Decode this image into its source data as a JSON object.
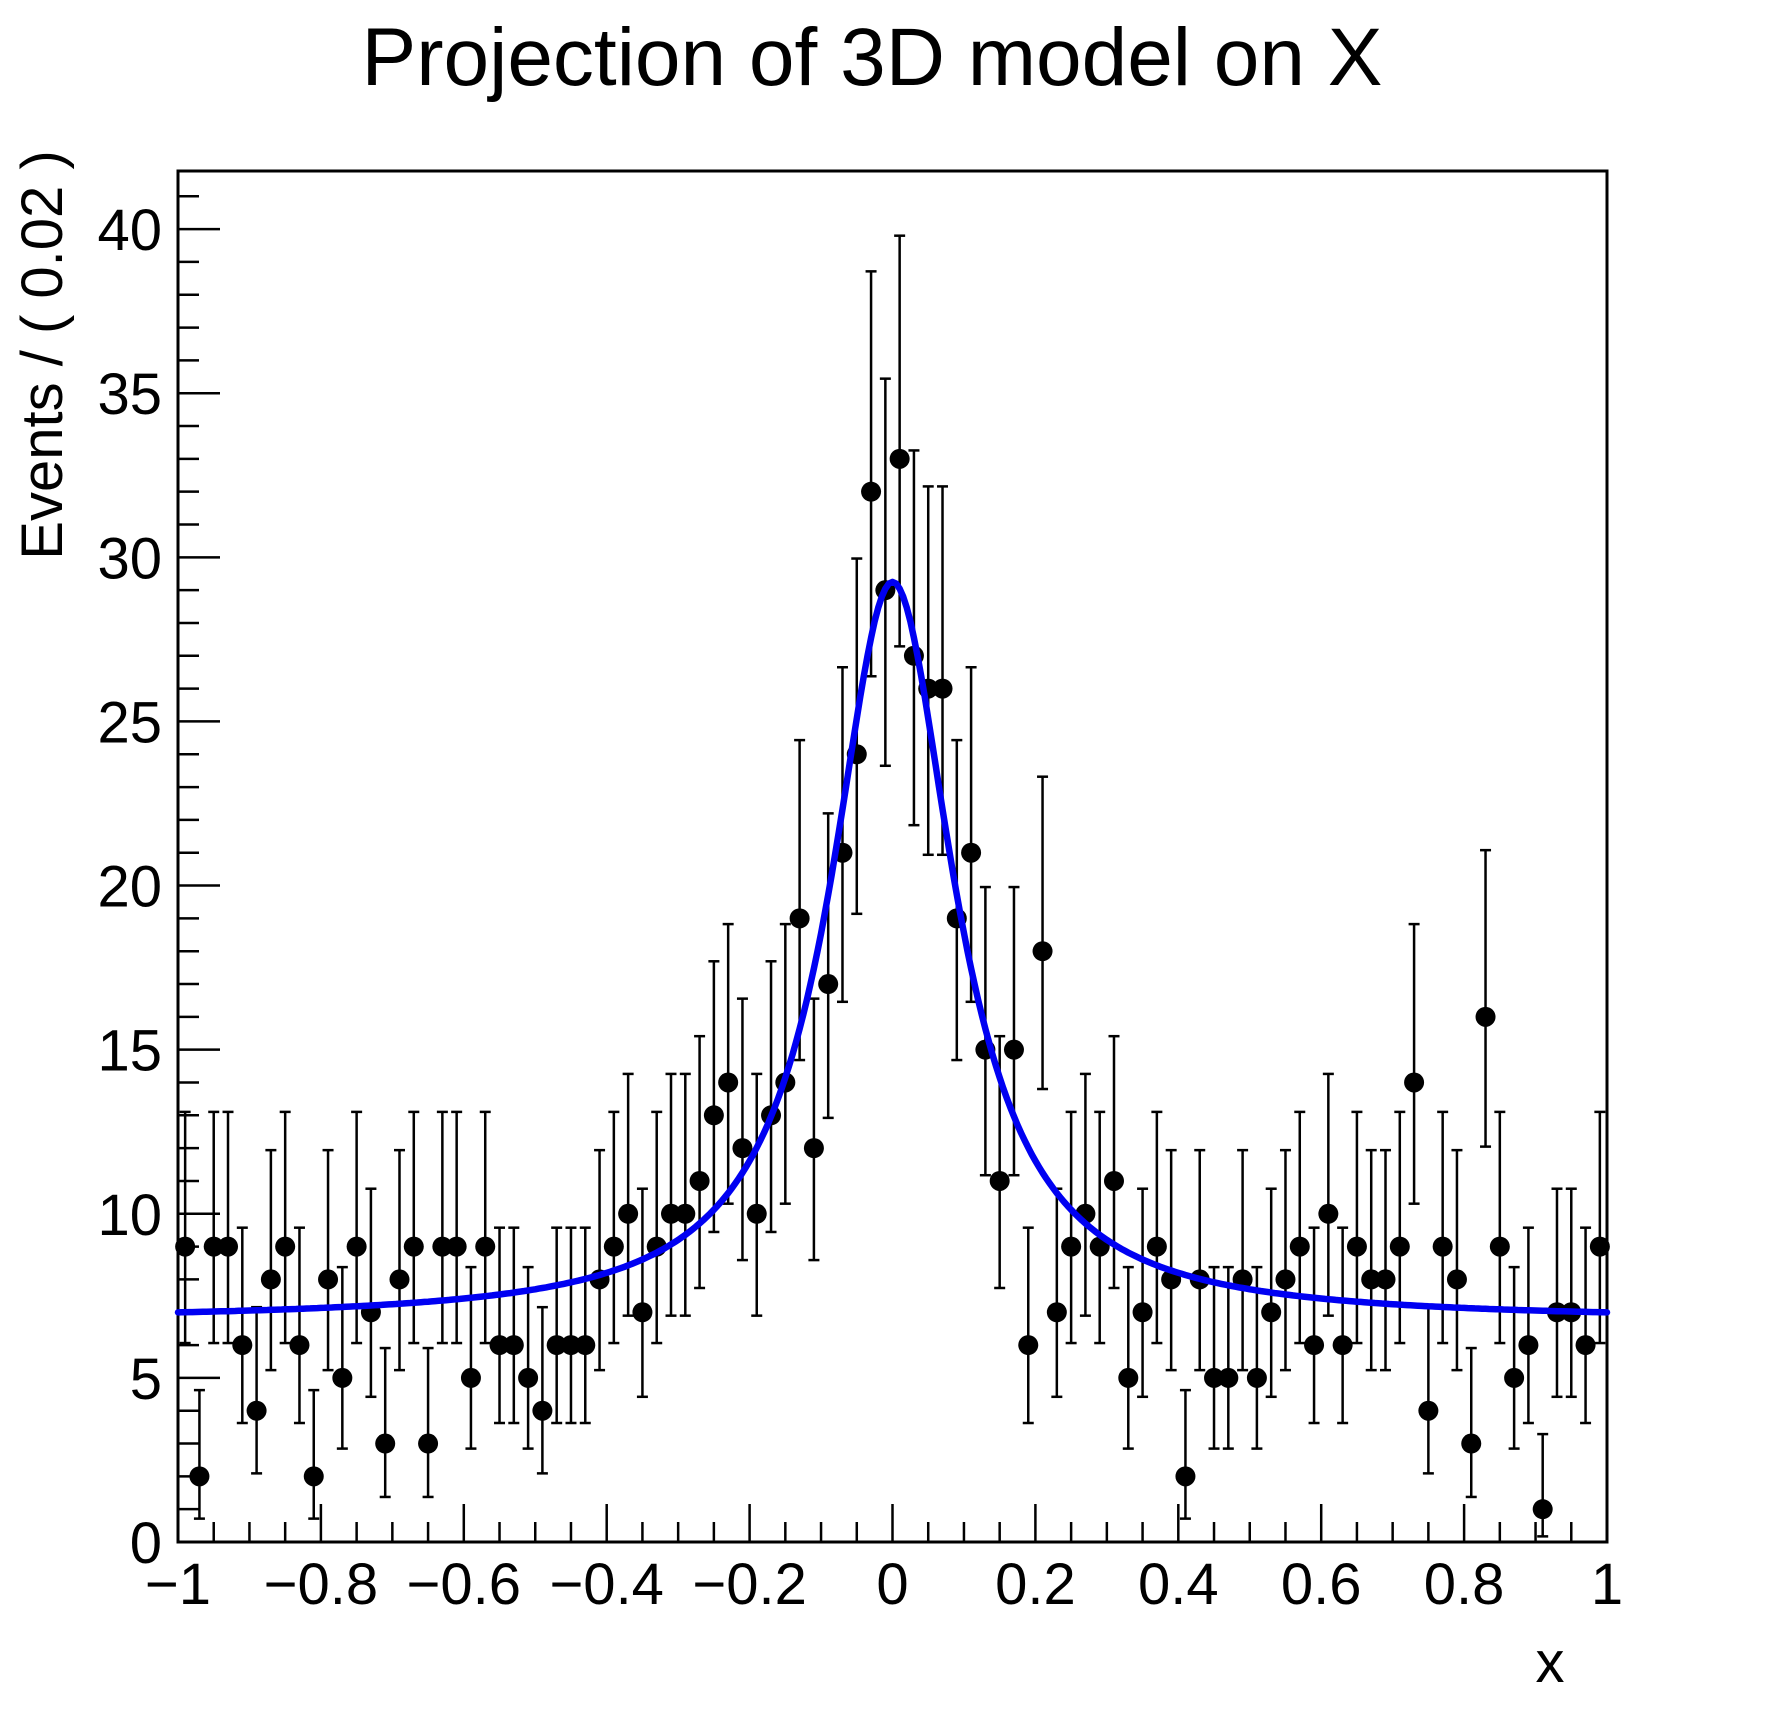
{
  "title": "Projection of 3D model on X",
  "background_color": "#ffffff",
  "axes": {
    "x_label": "x",
    "y_label": "Events / ( 0.02 )",
    "x_range": [
      -1,
      1
    ],
    "y_range": [
      0,
      41.77
    ],
    "x_major_tick_step": 0.2,
    "x_minor_tick_step": 0.05,
    "y_major_tick_step": 5,
    "y_minor_tick_step": 1,
    "x_tick_labels": [
      "−1",
      "−0.8",
      "−0.6",
      "−0.4",
      "−0.2",
      "0",
      "0.2",
      "0.4",
      "0.6",
      "0.8",
      "1"
    ],
    "y_tick_labels": [
      "0",
      "5",
      "10",
      "15",
      "20",
      "25",
      "30",
      "35",
      "40"
    ]
  },
  "chart_data": {
    "type": "scatter",
    "description": "Binned data points (black markers with asymmetric Poisson error bars) overlaid with fitted model curve",
    "bin_start": -0.99,
    "bin_step": 0.02,
    "n_bins": 100,
    "counts": [
      9,
      2,
      9,
      9,
      6,
      4,
      8,
      9,
      6,
      2,
      8,
      5,
      9,
      7,
      3,
      8,
      9,
      3,
      9,
      9,
      5,
      9,
      6,
      6,
      5,
      4,
      6,
      6,
      6,
      8,
      9,
      10,
      7,
      9,
      10,
      10,
      11,
      13,
      14,
      12,
      10,
      13,
      14,
      19,
      12,
      17,
      21,
      24,
      32,
      29,
      33,
      27,
      26,
      26,
      19,
      21,
      15,
      11,
      15,
      6,
      18,
      7,
      9,
      10,
      9,
      11,
      5,
      7,
      9,
      8,
      2,
      8,
      5,
      5,
      8,
      5,
      7,
      8,
      9,
      6,
      10,
      6,
      9,
      8,
      8,
      9,
      14,
      4,
      9,
      8,
      3,
      16,
      9,
      5,
      6,
      1,
      7,
      7,
      6,
      9
    ],
    "error_model": "poisson_asymmetric_68pct",
    "marker_color": "#000000",
    "fit_curve": {
      "model": "flat_background_plus_lorentzian_peak",
      "background": 6.75,
      "amplitude": 22.5,
      "center": 0,
      "gamma": 0.105,
      "peak_value": 29.25,
      "color": "#0000f2"
    }
  }
}
